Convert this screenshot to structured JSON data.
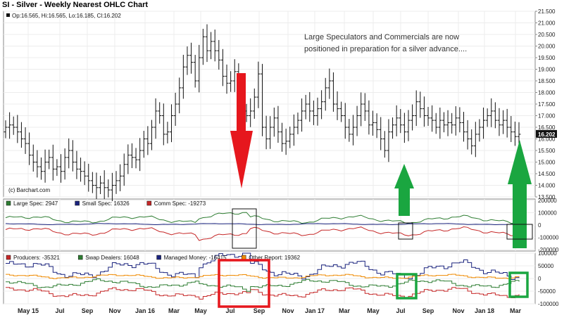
{
  "chart_data": [
    {
      "type": "ohlc",
      "title": "SI - Silver - Weekly Nearest OHLC Chart",
      "ohlc_readout": "Op:16.565, Hi:16.565, Lo:16.185, Cl:16.202",
      "copyright": "(c) Barchart.com",
      "annotation": [
        "Large Speculators and Commercials are now",
        "positioned in preparation for a silver advance...."
      ],
      "last_price_label": "16.202",
      "ylim": [
        13.5,
        21.5
      ],
      "y_ticks": [
        "21.500",
        "21.000",
        "20.500",
        "20.000",
        "19.500",
        "19.000",
        "18.500",
        "18.000",
        "17.500",
        "17.000",
        "16.500",
        "16.000",
        "15.500",
        "15.000",
        "14.500",
        "14.000",
        "13.500"
      ],
      "x_ticks": [
        "May 15",
        "Jul",
        "Sep",
        "Nov",
        "Jan 16",
        "Mar",
        "May",
        "Jul",
        "Sep",
        "Nov",
        "Jan 17",
        "Mar",
        "May",
        "Jul",
        "Sep",
        "Nov",
        "Jan 18",
        "Mar"
      ],
      "series": [
        {
          "name": "SI Weekly",
          "close": [
            16.5,
            16.6,
            16.5,
            16.3,
            16.0,
            15.8,
            15.3,
            15.0,
            14.8,
            14.6,
            15.0,
            15.2,
            14.7,
            14.8,
            14.6,
            15.2,
            15.5,
            15.0,
            14.7,
            14.6,
            14.4,
            14.2,
            14.0,
            13.9,
            14.1,
            13.9,
            13.8,
            14.0,
            14.2,
            14.4,
            14.9,
            15.3,
            15.2,
            15.1,
            15.5,
            16.0,
            15.8,
            16.5,
            17.2,
            17.0,
            16.2,
            16.3,
            17.0,
            17.5,
            18.2,
            19.1,
            19.6,
            19.3,
            18.5,
            19.5,
            20.4,
            19.8,
            20.2,
            19.8,
            19.4,
            18.7,
            18.4,
            18.5,
            18.9,
            17.9,
            17.2,
            17.0,
            17.2,
            17.8,
            18.8,
            16.5,
            16.0,
            16.5,
            16.9,
            16.3,
            15.8,
            15.9,
            16.2,
            16.5,
            16.8,
            17.2,
            17.5,
            17.2,
            17.0,
            17.3,
            17.6,
            18.2,
            18.5,
            17.5,
            17.3,
            17.0,
            16.5,
            16.2,
            16.5,
            17.0,
            17.5,
            17.2,
            16.6,
            16.7,
            16.4,
            16.0,
            15.5,
            16.3,
            16.6,
            16.9,
            16.6,
            16.3,
            16.8,
            17.0,
            17.6,
            17.3,
            17.0,
            16.9,
            16.8,
            16.5,
            16.8,
            16.6,
            16.7,
            16.6,
            16.9,
            16.7,
            16.3,
            16.0,
            15.7,
            16.2,
            16.5,
            16.8,
            17.0,
            17.2,
            16.8,
            16.6,
            16.8,
            16.5,
            16.3,
            16.1,
            16.2
          ]
        }
      ]
    },
    {
      "type": "line",
      "y_ticks": [
        "200000",
        "100000",
        "0",
        "-100000",
        "-200000"
      ],
      "ylim": [
        -210000,
        210000
      ],
      "series": [
        {
          "name": "Large Spec: 2947",
          "color": "#2e7d32"
        },
        {
          "name": "Small Spec: 16326",
          "color": "#1a237e"
        },
        {
          "name": "Comm Spec: -19273",
          "color": "#c62828"
        }
      ]
    },
    {
      "type": "line",
      "y_ticks": [
        "100000",
        "50000",
        "0",
        "-50000",
        "-100000"
      ],
      "ylim": [
        -100000,
        100000
      ],
      "series": [
        {
          "name": "Producers: -35321",
          "color": "#c62828"
        },
        {
          "name": "Swap Dealers: 16048",
          "color": "#2e7d32"
        },
        {
          "name": "Managed Money: -16415",
          "color": "#1a237e"
        },
        {
          "name": "Other Report: 19362",
          "color": "#ef8a00"
        }
      ]
    }
  ]
}
